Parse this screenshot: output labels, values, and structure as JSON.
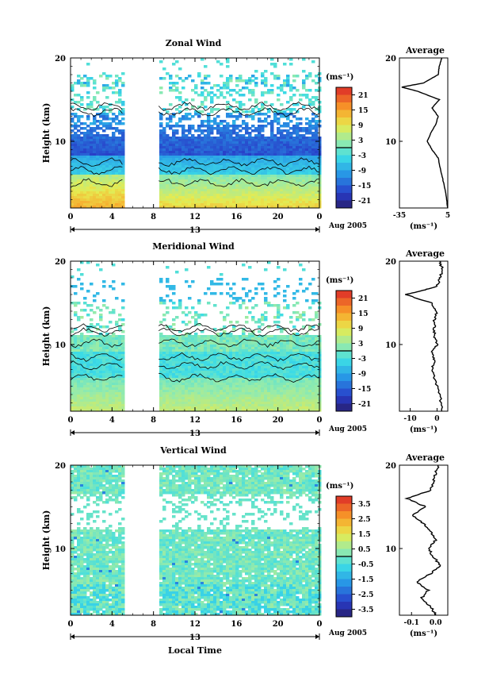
{
  "chart_data": [
    {
      "type": "heatmap",
      "title": "Zonal Wind",
      "ylabel": "Height (km)",
      "unit": "(ms⁻¹)",
      "xticks": [
        "0",
        "4",
        "8",
        "12",
        "16",
        "20",
        "0"
      ],
      "yticks": [
        "10",
        "20"
      ],
      "xlim": [
        0,
        24
      ],
      "ylim": [
        2,
        20
      ],
      "date_labels": {
        "day": "13",
        "month": "Aug 2005"
      },
      "colorbar_ticks": [
        "21",
        "15",
        "9",
        "3",
        "-3",
        "-9",
        "-15",
        "-21"
      ],
      "gap_hours": [
        5,
        8.5
      ],
      "average_profile": {
        "title": "Average",
        "xlabel": "(ms⁻¹)",
        "xticks": [
          "-35",
          "5"
        ],
        "xlim": [
          -35,
          5
        ],
        "yticks": [
          "10",
          "20"
        ],
        "height": [
          2,
          4,
          6,
          8,
          9,
          10,
          11,
          12,
          13,
          14,
          15,
          16,
          16.5,
          17,
          18,
          19,
          20
        ],
        "value": [
          5,
          3,
          0,
          -3,
          -8,
          -12,
          -9,
          -5,
          -3,
          -8,
          -2,
          -20,
          -33,
          -15,
          -3,
          -2,
          0
        ]
      }
    },
    {
      "type": "heatmap",
      "title": "Meridional Wind",
      "ylabel": "Height (km)",
      "unit": "(ms⁻¹)",
      "xticks": [
        "0",
        "4",
        "8",
        "12",
        "16",
        "20",
        "0"
      ],
      "yticks": [
        "10",
        "20"
      ],
      "xlim": [
        0,
        24
      ],
      "ylim": [
        2,
        20
      ],
      "date_labels": {
        "day": "13",
        "month": "Aug 2005"
      },
      "colorbar_ticks": [
        "21",
        "15",
        "9",
        "3",
        "-3",
        "-9",
        "-15",
        "-21"
      ],
      "gap_hours": [
        5,
        8.5
      ],
      "average_profile": {
        "title": "Average",
        "xlabel": "(ms⁻¹)",
        "xticks": [
          "-10",
          "0"
        ],
        "xlim": [
          -14,
          4
        ],
        "yticks": [
          "10",
          "20"
        ],
        "height": [
          2,
          4,
          6,
          7,
          8,
          9,
          10,
          11,
          12,
          13,
          14,
          15,
          16,
          16.5,
          17,
          18,
          19,
          20
        ],
        "value": [
          2,
          1,
          -1,
          -2,
          -1,
          -2,
          0,
          -1,
          -1,
          -1,
          0,
          -2,
          -12,
          -5,
          0,
          1,
          2,
          1
        ]
      }
    },
    {
      "type": "heatmap",
      "title": "Vertical Wind",
      "ylabel": "Height (km)",
      "xlabel": "Local Time",
      "unit": "(ms⁻¹)",
      "xticks": [
        "0",
        "4",
        "8",
        "12",
        "16",
        "20",
        "0"
      ],
      "yticks": [
        "10",
        "20"
      ],
      "xlim": [
        0,
        24
      ],
      "ylim": [
        2,
        20
      ],
      "date_labels": {
        "day": "13",
        "month": "Aug 2005"
      },
      "colorbar_ticks": [
        "3.5",
        "2.5",
        "1.5",
        "0.5",
        "-0.5",
        "-1.5",
        "-2.5",
        "-3.5"
      ],
      "gap_hours": [
        5,
        8.5
      ],
      "average_profile": {
        "title": "Average",
        "xlabel": "(ms⁻¹)",
        "xticks": [
          "-0.1",
          "0.0"
        ],
        "xlim": [
          -0.15,
          0.05
        ],
        "yticks": [
          "10",
          "20"
        ],
        "height": [
          2,
          3,
          4,
          5,
          6,
          7,
          8,
          9,
          10,
          11,
          12,
          13,
          14,
          15,
          16,
          17,
          18,
          19,
          20
        ],
        "value": [
          0.0,
          -0.02,
          -0.06,
          -0.03,
          -0.08,
          -0.02,
          0.02,
          -0.01,
          -0.03,
          0.0,
          -0.02,
          -0.05,
          -0.1,
          -0.04,
          -0.12,
          -0.02,
          -0.01,
          0.0,
          0.01
        ]
      }
    }
  ]
}
